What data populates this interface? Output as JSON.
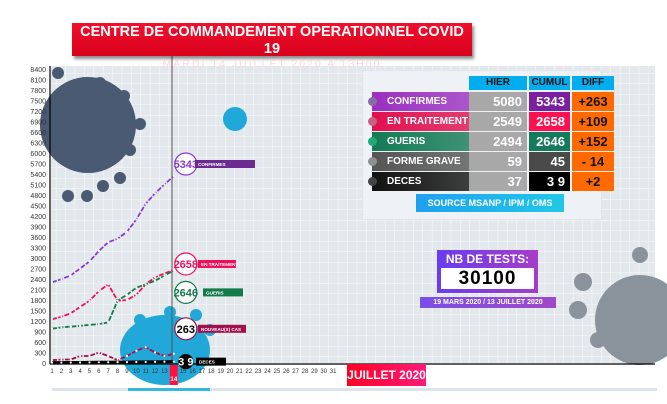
{
  "header": {
    "title": "CENTRE DE COMMANDEMENT OPERATIONNEL COVID 19",
    "subtitle": "MARDI 14 JUILLET 2020 A 13H00"
  },
  "table": {
    "columns": [
      "HIER",
      "CUMUL",
      "DIFF"
    ],
    "rows": [
      {
        "label": "CONFIRMES",
        "hier": "5080",
        "cumul": "5343",
        "diff": "+263",
        "color": "#9b2fc0",
        "dot": "#8a6aa8",
        "cumul_bg": "#7a1fa0"
      },
      {
        "label": "EN TRAITEMENT",
        "hier": "2549",
        "cumul": "2658",
        "diff": "+109",
        "color": "#e0104e",
        "dot": "#c86080",
        "cumul_bg": "#ff1050"
      },
      {
        "label": "GUERIS",
        "hier": "2494",
        "cumul": "2646",
        "diff": "+152",
        "color": "#137a55",
        "dot": "#20a878",
        "cumul_bg": "#137a5a"
      },
      {
        "label": "FORME GRAVE",
        "hier": "59",
        "cumul": "45",
        "diff": "- 14",
        "color": "#555555",
        "dot": "#909090",
        "cumul_bg": "#4a4a4a"
      },
      {
        "label": "DECES",
        "hier": "37",
        "cumul": "3 9",
        "diff": "+2",
        "color": "#111111",
        "dot": "#444444",
        "cumul_bg": "#000000"
      }
    ],
    "source": "SOURCE MSANP / IPM / OMS"
  },
  "tests": {
    "label": "NB DE TESTS:",
    "value": "30100",
    "period": "19 MARS 2020 / 13 JUILLET 2020"
  },
  "chart_data": {
    "type": "line",
    "xlabel": "JUILLET 2020",
    "current_day": "14",
    "x": [
      1,
      2,
      3,
      4,
      5,
      6,
      7,
      8,
      9,
      10,
      11,
      12,
      13,
      14
    ],
    "x_ticks": [
      "1",
      "2",
      "3",
      "4",
      "5",
      "6",
      "7",
      "8",
      "9",
      "10",
      "11",
      "12",
      "13",
      "14",
      "15",
      "16",
      "17",
      "18",
      "19",
      "20",
      "21",
      "22",
      "23",
      "24",
      "25",
      "26",
      "27",
      "28",
      "29",
      "30",
      "31"
    ],
    "y_ticks": [
      "0",
      "300",
      "600",
      "900",
      "1200",
      "1500",
      "1800",
      "2100",
      "2400",
      "2700",
      "3000",
      "3300",
      "3600",
      "3900",
      "4200",
      "4500",
      "4800",
      "5100",
      "5400",
      "5700",
      "6000",
      "6300",
      "6600",
      "6900",
      "7200",
      "7500",
      "7800",
      "8100",
      "8400"
    ],
    "ylim": [
      0,
      8400
    ],
    "xlim": [
      1,
      31
    ],
    "series": [
      {
        "name": "CONFIRMES",
        "color": "#8a3ad0",
        "values": [
          2300,
          2400,
          2500,
          2700,
          2900,
          3200,
          3450,
          3550,
          3750,
          4100,
          4550,
          4850,
          5100,
          5343
        ],
        "callout": "5343"
      },
      {
        "name": "EN TRAITEMENT",
        "color": "#f0105a",
        "values": [
          1250,
          1320,
          1420,
          1600,
          1780,
          2050,
          2250,
          1780,
          1800,
          1950,
          2250,
          2450,
          2560,
          2658
        ],
        "callout": "2658"
      },
      {
        "name": "GUERIS",
        "color": "#137a4a",
        "values": [
          980,
          1020,
          1040,
          1060,
          1090,
          1110,
          1160,
          1780,
          1950,
          2150,
          2250,
          2350,
          2500,
          2646
        ],
        "callout": "2646"
      },
      {
        "name": "NOUVEAU(X) CAS",
        "color": "#a0104a",
        "values": [
          80,
          100,
          100,
          200,
          200,
          300,
          200,
          80,
          200,
          350,
          450,
          300,
          200,
          263
        ],
        "callout": "263"
      },
      {
        "name": "DECES",
        "color": "#000000",
        "values": [
          10,
          12,
          14,
          16,
          18,
          20,
          22,
          24,
          26,
          28,
          31,
          33,
          37,
          39
        ],
        "callout": "3 9"
      }
    ]
  }
}
